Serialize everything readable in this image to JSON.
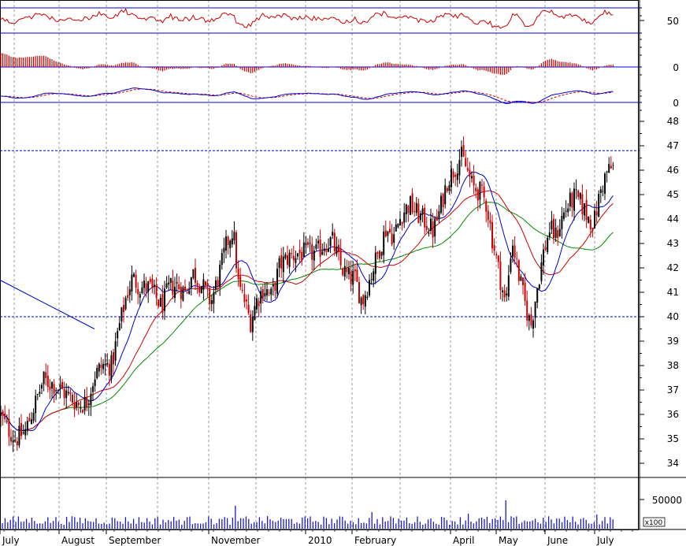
{
  "chart_data": {
    "type": "candlestick",
    "title": "",
    "xlabel": "",
    "ylabel": "",
    "months": [
      "July",
      "August",
      "September",
      "November",
      "2010",
      "February",
      "April",
      "May",
      "June",
      "July"
    ],
    "price_axis": {
      "ylim": [
        33.5,
        48.6
      ],
      "ticks": [
        34,
        35,
        36,
        37,
        38,
        39,
        40,
        41,
        42,
        43,
        44,
        45,
        46,
        47,
        48
      ]
    },
    "rsi_axis": {
      "ticks": [
        50
      ]
    },
    "histogram_axis": {
      "ticks": [
        0
      ]
    },
    "macd_axis": {
      "ticks": [
        0
      ]
    },
    "volume_axis": {
      "ticks": [
        50000
      ],
      "unit": "x100"
    },
    "reference_levels": [
      40,
      46.8
    ],
    "trendline": {
      "from": [
        0,
        41.5
      ],
      "to": [
        120,
        39.5
      ]
    },
    "close_anchors": [
      [
        0,
        36.0
      ],
      [
        10,
        35.4
      ],
      [
        20,
        35.0
      ],
      [
        32,
        35.3
      ],
      [
        42,
        36.2
      ],
      [
        55,
        37.4
      ],
      [
        70,
        37.2
      ],
      [
        85,
        36.8
      ],
      [
        100,
        36.4
      ],
      [
        110,
        36.5
      ],
      [
        120,
        37.6
      ],
      [
        130,
        38.0
      ],
      [
        142,
        38.0
      ],
      [
        150,
        39.4
      ],
      [
        160,
        40.8
      ],
      [
        168,
        41.6
      ],
      [
        178,
        41.2
      ],
      [
        190,
        41.2
      ],
      [
        205,
        40.4
      ],
      [
        215,
        41.2
      ],
      [
        225,
        41.3
      ],
      [
        235,
        41.0
      ],
      [
        245,
        41.8
      ],
      [
        258,
        41.2
      ],
      [
        268,
        40.6
      ],
      [
        278,
        41.7
      ],
      [
        288,
        43.0
      ],
      [
        296,
        43.6
      ],
      [
        303,
        41.2
      ],
      [
        310,
        40.7
      ],
      [
        318,
        39.8
      ],
      [
        325,
        40.6
      ],
      [
        335,
        41.2
      ],
      [
        345,
        40.8
      ],
      [
        355,
        42.1
      ],
      [
        365,
        42.4
      ],
      [
        378,
        42.6
      ],
      [
        390,
        42.6
      ],
      [
        402,
        42.6
      ],
      [
        412,
        43.0
      ],
      [
        422,
        43.1
      ],
      [
        432,
        42.1
      ],
      [
        442,
        41.6
      ],
      [
        450,
        41.6
      ],
      [
        460,
        40.6
      ],
      [
        470,
        41.6
      ],
      [
        480,
        42.6
      ],
      [
        490,
        43.6
      ],
      [
        500,
        43.3
      ],
      [
        510,
        44.2
      ],
      [
        520,
        44.6
      ],
      [
        530,
        44.2
      ],
      [
        540,
        43.9
      ],
      [
        550,
        43.5
      ],
      [
        558,
        44.3
      ],
      [
        568,
        45.6
      ],
      [
        578,
        46.1
      ],
      [
        585,
        46.6
      ],
      [
        592,
        46.1
      ],
      [
        600,
        45.3
      ],
      [
        610,
        45.1
      ],
      [
        618,
        44.6
      ],
      [
        625,
        43.2
      ],
      [
        635,
        41.6
      ],
      [
        642,
        40.4
      ],
      [
        650,
        43.2
      ],
      [
        658,
        41.8
      ],
      [
        666,
        40.6
      ],
      [
        674,
        39.6
      ],
      [
        682,
        41.2
      ],
      [
        690,
        42.6
      ],
      [
        698,
        43.6
      ],
      [
        706,
        43.3
      ],
      [
        714,
        44.1
      ],
      [
        722,
        44.6
      ],
      [
        730,
        44.9
      ],
      [
        738,
        44.6
      ],
      [
        746,
        44.1
      ],
      [
        754,
        43.8
      ],
      [
        762,
        45.1
      ],
      [
        770,
        45.9
      ],
      [
        778,
        46.1
      ]
    ],
    "volume_level": [
      5,
      10
    ],
    "volume_spikes": [
      [
        300,
        29
      ],
      [
        473,
        21
      ],
      [
        642,
        36
      ],
      [
        595,
        19
      ],
      [
        758,
        18
      ]
    ]
  }
}
